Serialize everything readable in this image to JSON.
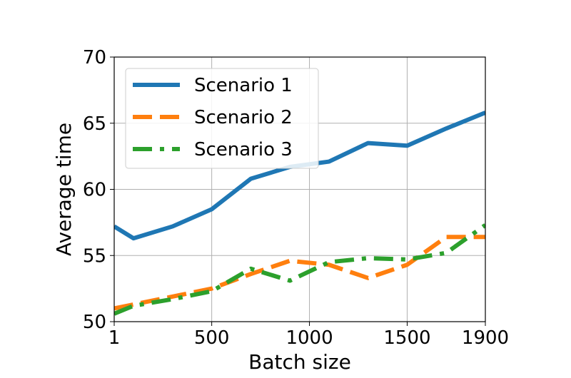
{
  "chart_data": {
    "type": "line",
    "title": "",
    "xlabel": "Batch size",
    "ylabel": "Average time",
    "xlim": [
      1,
      1900
    ],
    "ylim": [
      50,
      70
    ],
    "x_ticks": [
      1,
      500,
      1000,
      1500,
      1900
    ],
    "x_tick_labels": [
      "1",
      "500",
      "1000",
      "1500",
      "1900"
    ],
    "y_ticks": [
      50,
      55,
      60,
      65,
      70
    ],
    "y_tick_labels": [
      "50",
      "55",
      "60",
      "65",
      "70"
    ],
    "grid": true,
    "legend_position": "top-left",
    "x": [
      1,
      100,
      300,
      500,
      700,
      900,
      1100,
      1300,
      1500,
      1700,
      1900
    ],
    "series": [
      {
        "name": "Scenario 1",
        "color": "#1f77b4",
        "dash": "solid",
        "values": [
          57.2,
          56.3,
          57.2,
          58.5,
          60.8,
          61.7,
          62.1,
          63.5,
          63.3,
          64.6,
          65.8
        ]
      },
      {
        "name": "Scenario 2",
        "color": "#ff7f0e",
        "dash": "dashed",
        "values": [
          51.0,
          51.3,
          51.9,
          52.5,
          53.6,
          54.6,
          54.3,
          53.3,
          54.3,
          56.4,
          56.4
        ]
      },
      {
        "name": "Scenario 3",
        "color": "#2ca02c",
        "dash": "dashdot",
        "values": [
          50.6,
          51.2,
          51.7,
          52.3,
          54.0,
          53.1,
          54.5,
          54.8,
          54.7,
          55.2,
          57.3
        ]
      }
    ]
  }
}
